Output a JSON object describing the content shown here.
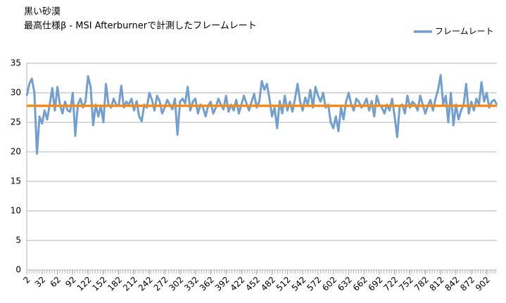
{
  "chart_data": {
    "type": "line",
    "title": "黒い砂漠",
    "subtitle": "最高仕様β - MSI Afterburnerで計測したフレームレート",
    "x": [
      2,
      7,
      12,
      17,
      22,
      27,
      32,
      37,
      42,
      47,
      52,
      57,
      62,
      67,
      72,
      77,
      82,
      87,
      92,
      97,
      102,
      107,
      112,
      117,
      122,
      127,
      132,
      137,
      142,
      147,
      152,
      157,
      162,
      167,
      172,
      177,
      182,
      187,
      192,
      197,
      202,
      207,
      212,
      217,
      222,
      227,
      232,
      237,
      242,
      247,
      252,
      257,
      262,
      267,
      272,
      277,
      282,
      287,
      292,
      297,
      302,
      307,
      312,
      317,
      322,
      327,
      332,
      337,
      342,
      347,
      352,
      357,
      362,
      367,
      372,
      377,
      382,
      387,
      392,
      397,
      402,
      407,
      412,
      417,
      422,
      427,
      432,
      437,
      442,
      447,
      452,
      457,
      462,
      467,
      472,
      477,
      482,
      487,
      492,
      497,
      502,
      507,
      512,
      517,
      522,
      527,
      532,
      537,
      542,
      547,
      552,
      557,
      562,
      567,
      572,
      577,
      582,
      587,
      592,
      597,
      602,
      607,
      612,
      617,
      622,
      627,
      632,
      637,
      642,
      647,
      652,
      657,
      662,
      667,
      672,
      677,
      682,
      687,
      692,
      697,
      702,
      707,
      712,
      717,
      722,
      727,
      732,
      737,
      742,
      747,
      752,
      757,
      762,
      767,
      772,
      777,
      782,
      787,
      792,
      797,
      802,
      807,
      812,
      817,
      822,
      827,
      832,
      837,
      842,
      847,
      852,
      857,
      862,
      867,
      872,
      877,
      882,
      887,
      892,
      897,
      902,
      907,
      912,
      917,
      922
    ],
    "series": [
      {
        "name": "フレームレート",
        "color": "#729fcf",
        "values": [
          29.5,
          31.5,
          32.4,
          30,
          19.7,
          26,
          24.8,
          27,
          25.5,
          28,
          30.8,
          27,
          31,
          28,
          26.5,
          28.5,
          27,
          26.8,
          30,
          22.7,
          28,
          29,
          27.5,
          28.5,
          32.8,
          31,
          24.5,
          28,
          26,
          27.8,
          25,
          31.5,
          28,
          27.5,
          29,
          28,
          27.8,
          31.2,
          27.5,
          28.5,
          28,
          29,
          27,
          28.6,
          26,
          25.2,
          28,
          27.5,
          30,
          28.8,
          27,
          29.5,
          28.6,
          26.5,
          27.5,
          28.8,
          28,
          27.2,
          29,
          22.9,
          28.5,
          29,
          28.2,
          31,
          27,
          28.5,
          29,
          26.5,
          28,
          27.5,
          26,
          27.8,
          28.5,
          26.5,
          27.5,
          29,
          28,
          27.2,
          29.5,
          26.8,
          28,
          27,
          28.8,
          26.5,
          28,
          29.5,
          28.2,
          27,
          28.5,
          29.8,
          27.5,
          28.5,
          32,
          30.5,
          31.5,
          29,
          26,
          27.5,
          24,
          28.6,
          26.5,
          29.5,
          27,
          28.5,
          26.8,
          29,
          31.5,
          28.5,
          27,
          29.2,
          28,
          30.5,
          27.5,
          31,
          29.5,
          28.5,
          30,
          27.5,
          28,
          25,
          24,
          26,
          23.5,
          27.5,
          25.5,
          28.5,
          30,
          28,
          27,
          29,
          28.5,
          27.5,
          28,
          29,
          27,
          28.6,
          26,
          29.5,
          28,
          27.5,
          26.5,
          28,
          27,
          29,
          26,
          22.5,
          27.8,
          28,
          26.5,
          29.5,
          27.5,
          28.5,
          28,
          27,
          29.5,
          28,
          26.5,
          27.8,
          28.8,
          27,
          29,
          30.5,
          33,
          28,
          29.5,
          25,
          30,
          24.5,
          28,
          25.5,
          27,
          28,
          31.5,
          26.5,
          28.5,
          27,
          29,
          28,
          31.8,
          28.5,
          30,
          27.5,
          28.5,
          28.8,
          28
        ]
      }
    ],
    "reference_line": {
      "value": 27.8,
      "color": "#f08c1a"
    },
    "xlim": [
      2,
      922
    ],
    "xticks": [
      2,
      32,
      62,
      92,
      122,
      152,
      182,
      212,
      242,
      272,
      302,
      332,
      362,
      392,
      422,
      452,
      482,
      512,
      542,
      572,
      602,
      632,
      662,
      692,
      722,
      752,
      782,
      812,
      842,
      872,
      902
    ],
    "ylim": [
      0,
      35
    ],
    "yticks": [
      0,
      5,
      10,
      15,
      20,
      25,
      30,
      35
    ],
    "grid": true,
    "legend": "top-right"
  }
}
